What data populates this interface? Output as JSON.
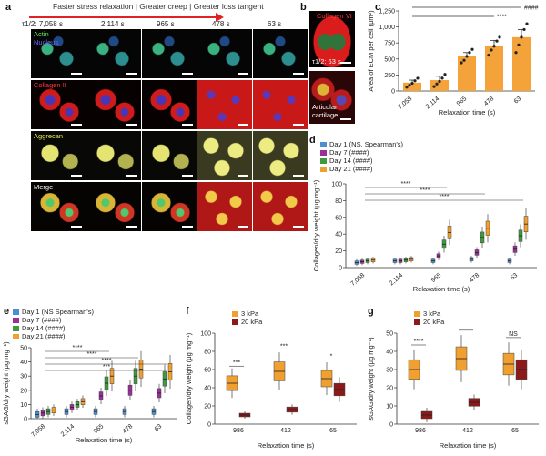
{
  "panel_a": {
    "label": "a",
    "banner": "Faster stress relaxation | Greater creep | Greater loss tangent",
    "tau_label": "τ1/2: 7,058 s",
    "times": [
      "2,114 s",
      "965 s",
      "478 s",
      "63 s"
    ],
    "rows": [
      {
        "key": "actin",
        "labels": [
          {
            "text": "Actin",
            "color": "#5be35b"
          },
          {
            "text": "Nucleus",
            "color": "#6a6aff"
          }
        ]
      },
      {
        "key": "coll",
        "labels": [
          {
            "text": "Collagen II",
            "color": "#ff3a3a"
          }
        ]
      },
      {
        "key": "agg",
        "labels": [
          {
            "text": "Aggrecan",
            "color": "#e8e85a"
          }
        ]
      },
      {
        "key": "merge",
        "labels": [
          {
            "text": "Merge",
            "color": "#ffffff"
          }
        ]
      }
    ],
    "arrow_color": "#e02222"
  },
  "panel_b": {
    "label": "b",
    "title": "Collagen VI",
    "inset_tau": "τ1/2: 63 s",
    "inset2": "Articular cartilage"
  },
  "chart_data": [
    {
      "id": "c",
      "type": "bar",
      "categories": [
        "7,058",
        "2,114",
        "965",
        "478",
        "63"
      ],
      "values": [
        130,
        170,
        540,
        700,
        840
      ],
      "errors": [
        40,
        60,
        60,
        90,
        120
      ],
      "points": [
        [
          60,
          90,
          120,
          160,
          200
        ],
        [
          70,
          110,
          150,
          200,
          260
        ],
        [
          440,
          480,
          540,
          600,
          650
        ],
        [
          560,
          640,
          700,
          780,
          840
        ],
        [
          600,
          720,
          840,
          960,
          1050
        ]
      ],
      "ylabel": "Area of ECM per cell (μm²)",
      "xlabel": "Relaxation time (s)",
      "ylim": [
        0,
        1250
      ],
      "yticks": [
        0,
        250,
        500,
        750,
        1000,
        1250
      ],
      "sig": [
        {
          "text": "####",
          "from": 0,
          "to": 4
        },
        {
          "text": "****",
          "from": 0,
          "to": 3
        }
      ],
      "color": "#f3a33a"
    },
    {
      "id": "d",
      "type": "box",
      "categories": [
        "7,058",
        "2,114",
        "965",
        "478",
        "63"
      ],
      "series": [
        {
          "name": "Day 1 (NS, Spearman's)",
          "color": "#4a8fd6",
          "median": [
            6,
            8,
            8,
            10,
            8
          ]
        },
        {
          "name": "Day 7 (####)",
          "color": "#9a2f9a",
          "median": [
            7,
            8,
            14,
            18,
            22
          ]
        },
        {
          "name": "Day 14 (####)",
          "color": "#3f9a3f",
          "median": [
            8,
            9,
            28,
            36,
            38
          ]
        },
        {
          "name": "Day 21 (####)",
          "color": "#f0a030",
          "median": [
            9,
            10,
            42,
            47,
            52
          ]
        }
      ],
      "ylabel": "Collagen/dry weight (μg mg⁻¹)",
      "xlabel": "Relaxation time (s)",
      "ylim": [
        0,
        100
      ],
      "yticks": [
        0,
        20,
        40,
        60,
        80,
        100
      ],
      "sig": [
        "****",
        "****",
        "****"
      ]
    },
    {
      "id": "e",
      "type": "box",
      "categories": [
        "7,058",
        "2,114",
        "965",
        "478",
        "63"
      ],
      "series": [
        {
          "name": "Day 1 (NS Spearman's)",
          "color": "#4a8fd6",
          "median": [
            3,
            5,
            5,
            5,
            5
          ]
        },
        {
          "name": "Day 7 (####)",
          "color": "#9a2f9a",
          "median": [
            4,
            8,
            16,
            20,
            18
          ]
        },
        {
          "name": "Day 14 (####)",
          "color": "#3f9a3f",
          "median": [
            5,
            10,
            25,
            30,
            28
          ]
        },
        {
          "name": "Day 21 (####)",
          "color": "#f0a030",
          "median": [
            6,
            12,
            30,
            35,
            33
          ]
        }
      ],
      "ylabel": "sGAG/dry weight (μg mg⁻¹)",
      "xlabel": "Relaxation time (s)",
      "ylim": [
        0,
        50
      ],
      "yticks": [
        0,
        10,
        20,
        30,
        40,
        50
      ],
      "sig": [
        "****",
        "****",
        "****",
        "***"
      ]
    },
    {
      "id": "f",
      "type": "box",
      "categories": [
        "986",
        "412",
        "65"
      ],
      "series": [
        {
          "name": "3 kPa",
          "color": "#f0a030",
          "median": [
            45,
            58,
            50
          ]
        },
        {
          "name": "20 kPa",
          "color": "#8b1a1a",
          "median": [
            10,
            16,
            38
          ]
        }
      ],
      "ylabel": "Collagen/dry weight (μg mg⁻¹)",
      "xlabel": "Relaxation time (s)",
      "ylim": [
        0,
        100
      ],
      "yticks": [
        0,
        20,
        40,
        60,
        80,
        100
      ],
      "sig": [
        "***",
        "***",
        "*"
      ]
    },
    {
      "id": "g",
      "type": "box",
      "categories": [
        "986",
        "412",
        "65"
      ],
      "series": [
        {
          "name": "3 kPa",
          "color": "#f0a030",
          "median": [
            30,
            36,
            33
          ]
        },
        {
          "name": "20 kPa",
          "color": "#8b1a1a",
          "median": [
            5,
            12,
            30
          ]
        }
      ],
      "ylabel": "sGAG/dry weight (μg mg⁻¹)",
      "xlabel": "Relaxation time (s)",
      "ylim": [
        0,
        50
      ],
      "yticks": [
        0,
        10,
        20,
        30,
        40,
        50
      ],
      "sig": [
        "****",
        "****",
        "NS"
      ]
    }
  ]
}
